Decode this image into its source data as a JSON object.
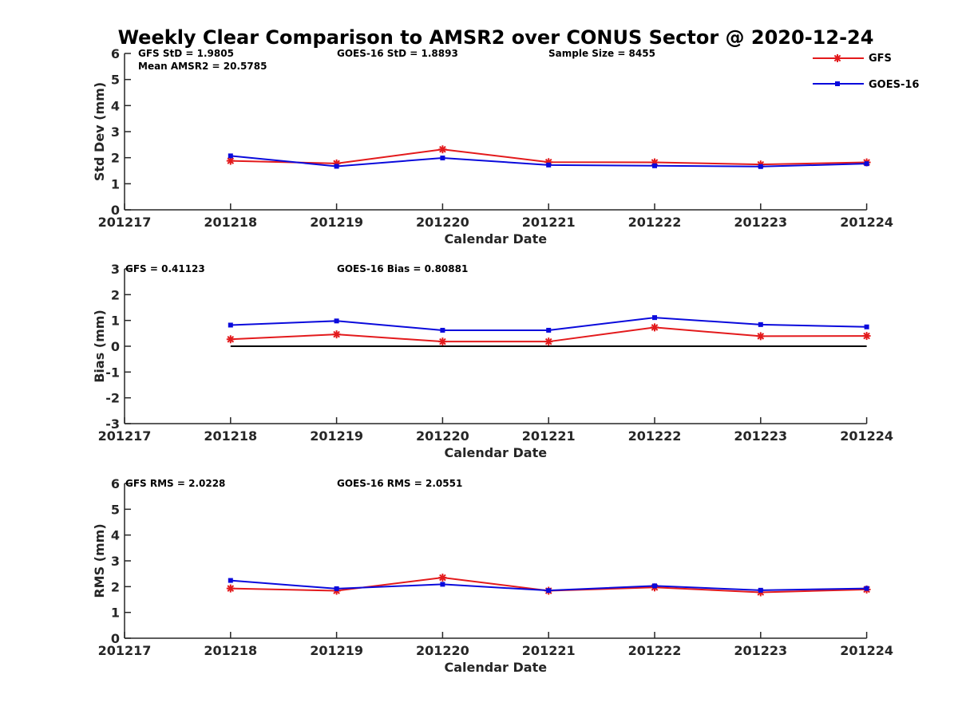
{
  "title": "Weekly Clear Comparison to AMSR2 over CONUS Sector @ 2020-12-24",
  "legend": {
    "placement": "top-right",
    "entries": [
      {
        "name": "GFS",
        "color": "#e31a1c",
        "marker": "asterisk"
      },
      {
        "name": "GOES-16",
        "color": "#0a0adc",
        "marker": "square"
      }
    ]
  },
  "colors": {
    "gfs": "#e31a1c",
    "goes": "#0a0adc",
    "axis": "#262626",
    "zero_line": "#000000"
  },
  "chart_data": [
    {
      "type": "line",
      "xlabel": "Calendar Date",
      "ylabel": "Std Dev (mm)",
      "categories": [
        "201217",
        "201218",
        "201219",
        "201220",
        "201221",
        "201222",
        "201223",
        "201224"
      ],
      "yticks": [
        "0",
        "1",
        "2",
        "3",
        "4",
        "5",
        "6"
      ],
      "ylim": [
        0,
        6
      ],
      "grid": false,
      "annotations": {
        "a1": "GFS StD = 1.9805",
        "a2": "GOES-16 StD = 1.8893",
        "a3": "Sample Size = 8455",
        "a4": "Mean AMSR2 = 20.5785"
      },
      "series": [
        {
          "name": "GFS",
          "x": [
            "201218",
            "201219",
            "201220",
            "201221",
            "201222",
            "201223",
            "201224"
          ],
          "values": [
            1.88,
            1.78,
            2.32,
            1.83,
            1.82,
            1.74,
            1.82
          ]
        },
        {
          "name": "GOES-16",
          "x": [
            "201218",
            "201219",
            "201220",
            "201221",
            "201222",
            "201223",
            "201224"
          ],
          "values": [
            2.07,
            1.67,
            1.99,
            1.72,
            1.69,
            1.66,
            1.77
          ]
        }
      ]
    },
    {
      "type": "line",
      "xlabel": "Calendar Date",
      "ylabel": "Bias (mm)",
      "categories": [
        "201217",
        "201218",
        "201219",
        "201220",
        "201221",
        "201222",
        "201223",
        "201224"
      ],
      "yticks": [
        "-3",
        "-2",
        "-1",
        "0",
        "1",
        "2",
        "3"
      ],
      "ylim": [
        -3,
        3
      ],
      "grid": false,
      "zero_line": true,
      "annotations": {
        "a1": "GFS = 0.41123",
        "a2": "GOES-16 Bias  = 0.80881"
      },
      "series": [
        {
          "name": "GFS",
          "x": [
            "201218",
            "201219",
            "201220",
            "201221",
            "201222",
            "201223",
            "201224"
          ],
          "values": [
            0.27,
            0.46,
            0.18,
            0.18,
            0.73,
            0.39,
            0.4
          ]
        },
        {
          "name": "GOES-16",
          "x": [
            "201218",
            "201219",
            "201220",
            "201221",
            "201222",
            "201223",
            "201224"
          ],
          "values": [
            0.82,
            0.98,
            0.62,
            0.62,
            1.11,
            0.84,
            0.75
          ]
        }
      ]
    },
    {
      "type": "line",
      "xlabel": "Calendar Date",
      "ylabel": "RMS (mm)",
      "categories": [
        "201217",
        "201218",
        "201219",
        "201220",
        "201221",
        "201222",
        "201223",
        "201224"
      ],
      "yticks": [
        "0",
        "1",
        "2",
        "3",
        "4",
        "5",
        "6"
      ],
      "ylim": [
        0,
        6
      ],
      "grid": false,
      "annotations": {
        "a1": "GFS RMS = 2.0228",
        "a2": "GOES-16 RMS = 2.0551"
      },
      "series": [
        {
          "name": "GFS",
          "x": [
            "201218",
            "201219",
            "201220",
            "201221",
            "201222",
            "201223",
            "201224"
          ],
          "values": [
            1.93,
            1.84,
            2.35,
            1.84,
            1.97,
            1.78,
            1.89
          ]
        },
        {
          "name": "GOES-16",
          "x": [
            "201218",
            "201219",
            "201220",
            "201221",
            "201222",
            "201223",
            "201224"
          ],
          "values": [
            2.24,
            1.92,
            2.09,
            1.85,
            2.03,
            1.86,
            1.93
          ]
        }
      ]
    }
  ]
}
